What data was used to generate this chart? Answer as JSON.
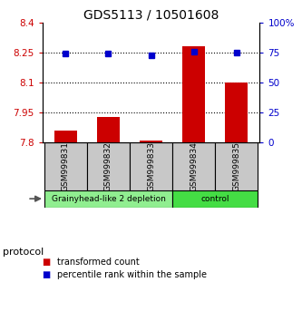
{
  "title": "GDS5113 / 10501608",
  "samples": [
    "GSM999831",
    "GSM999832",
    "GSM999833",
    "GSM999834",
    "GSM999835"
  ],
  "red_values": [
    7.86,
    7.93,
    7.81,
    8.28,
    8.1
  ],
  "blue_values": [
    74.0,
    74.0,
    73.0,
    76.0,
    75.0
  ],
  "ylim_left": [
    7.8,
    8.4
  ],
  "ylim_right": [
    0,
    100
  ],
  "yticks_left": [
    7.8,
    7.95,
    8.1,
    8.25,
    8.4
  ],
  "ytick_labels_left": [
    "7.8",
    "7.95",
    "8.1",
    "8.25",
    "8.4"
  ],
  "yticks_right": [
    0,
    25,
    50,
    75,
    100
  ],
  "ytick_labels_right": [
    "0",
    "25",
    "50",
    "75",
    "100%"
  ],
  "hlines": [
    7.95,
    8.1,
    8.25
  ],
  "groups": [
    {
      "label": "Grainyhead-like 2 depletion",
      "indices": [
        0,
        1,
        2
      ],
      "color": "#90EE90"
    },
    {
      "label": "control",
      "indices": [
        3,
        4
      ],
      "color": "#44dd44"
    }
  ],
  "protocol_label": "protocol",
  "legend_red": "transformed count",
  "legend_blue": "percentile rank within the sample",
  "bar_color": "#cc0000",
  "dot_color": "#0000cc",
  "bar_width": 0.55,
  "title_fontsize": 10,
  "tick_label_color_left": "#cc0000",
  "tick_label_color_right": "#0000cc",
  "sample_box_color": "#c8c8c8",
  "xlim": [
    -0.55,
    4.55
  ]
}
